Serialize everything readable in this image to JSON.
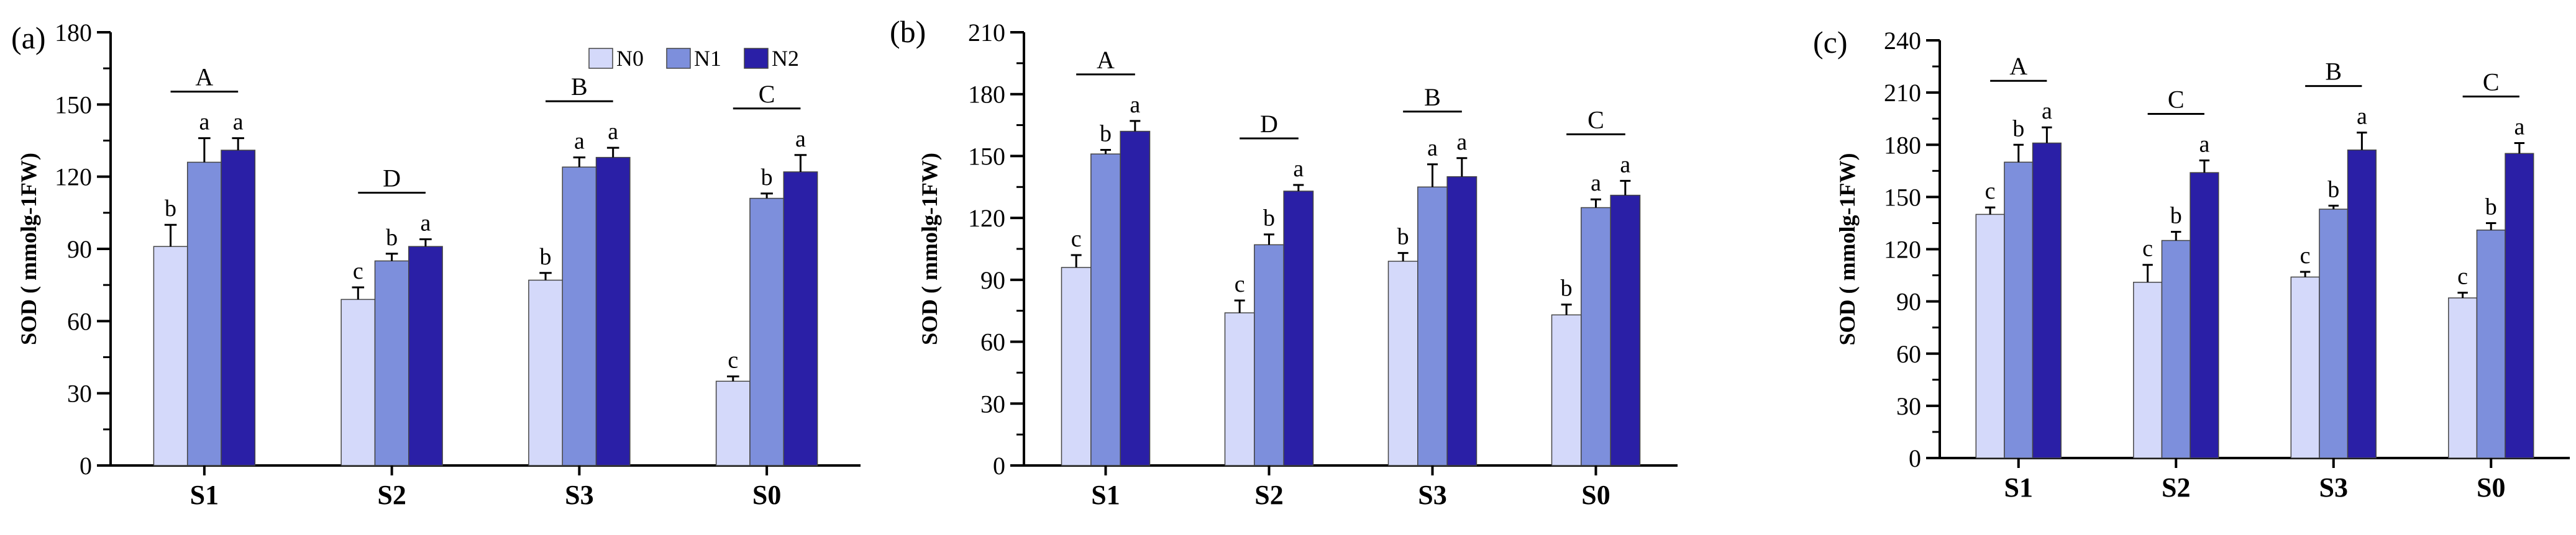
{
  "chart_data": [
    {
      "type": "bar",
      "panel_label": "(a)",
      "ylabel": "SOD ( mmolg-1FW)",
      "ylim": [
        0,
        180
      ],
      "yticks": [
        0,
        30,
        60,
        90,
        120,
        150,
        180
      ],
      "categories": [
        "S1",
        "S2",
        "S3",
        "S0"
      ],
      "legend": {
        "placement": "top-right",
        "entries": [
          "N0",
          "N1",
          "N2"
        ]
      },
      "series": [
        {
          "name": "N0",
          "values": [
            91,
            69,
            77,
            35
          ],
          "errors": [
            9,
            5,
            3,
            2
          ],
          "letters": [
            "b",
            "c",
            "b",
            "c"
          ]
        },
        {
          "name": "N1",
          "values": [
            126,
            85,
            124,
            111
          ],
          "errors": [
            10,
            3,
            4,
            2
          ],
          "letters": [
            "a",
            "b",
            "a",
            "b"
          ]
        },
        {
          "name": "N2",
          "values": [
            131,
            91,
            128,
            122
          ],
          "errors": [
            5,
            3,
            4,
            7
          ],
          "letters": [
            "a",
            "a",
            "a",
            "a"
          ]
        }
      ],
      "group_letters": [
        "A",
        "D",
        "B",
        "C"
      ],
      "grid": false
    },
    {
      "type": "bar",
      "panel_label": "(b)",
      "ylabel": "SOD ( mmolg-1FW)",
      "ylim": [
        0,
        210
      ],
      "yticks": [
        0,
        30,
        60,
        90,
        120,
        150,
        180,
        210
      ],
      "categories": [
        "S1",
        "S2",
        "S3",
        "S0"
      ],
      "series": [
        {
          "name": "N0",
          "values": [
            96,
            74,
            99,
            73
          ],
          "errors": [
            6,
            6,
            4,
            5
          ],
          "letters": [
            "c",
            "c",
            "b",
            "b"
          ]
        },
        {
          "name": "N1",
          "values": [
            151,
            107,
            135,
            125
          ],
          "errors": [
            2,
            5,
            11,
            4
          ],
          "letters": [
            "b",
            "b",
            "a",
            "a"
          ]
        },
        {
          "name": "N2",
          "values": [
            162,
            133,
            140,
            131
          ],
          "errors": [
            5,
            3,
            9,
            7
          ],
          "letters": [
            "a",
            "a",
            "a",
            "a"
          ]
        }
      ],
      "group_letters": [
        "A",
        "D",
        "B",
        "C"
      ],
      "grid": false
    },
    {
      "type": "bar",
      "panel_label": "(c)",
      "ylabel": "SOD ( mmolg-1FW)",
      "ylim": [
        0,
        240
      ],
      "yticks": [
        0,
        30,
        60,
        90,
        120,
        150,
        180,
        210,
        240
      ],
      "categories": [
        "S1",
        "S2",
        "S3",
        "S0"
      ],
      "series": [
        {
          "name": "N0",
          "values": [
            140,
            101,
            104,
            92
          ],
          "errors": [
            4,
            10,
            3,
            3
          ],
          "letters": [
            "c",
            "c",
            "c",
            "c"
          ]
        },
        {
          "name": "N1",
          "values": [
            170,
            125,
            143,
            131
          ],
          "errors": [
            10,
            5,
            2,
            4
          ],
          "letters": [
            "b",
            "b",
            "b",
            "b"
          ]
        },
        {
          "name": "N2",
          "values": [
            181,
            164,
            177,
            175
          ],
          "errors": [
            9,
            7,
            10,
            6
          ],
          "letters": [
            "a",
            "a",
            "a",
            "a"
          ]
        }
      ],
      "group_letters": [
        "A",
        "C",
        "B",
        "C"
      ],
      "grid": false
    }
  ],
  "colors": {
    "N0": "#d4d9fa",
    "N1": "#7d8fdc",
    "N2": "#2a1fa6",
    "axis": "#000000"
  }
}
